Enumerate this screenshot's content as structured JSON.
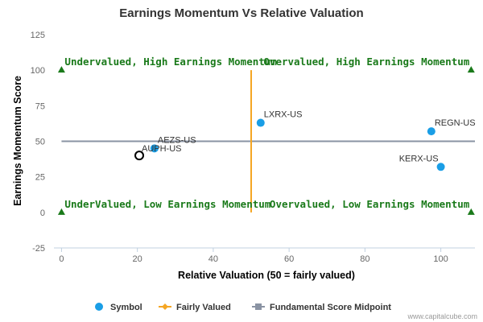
{
  "chart_data": {
    "type": "scatter",
    "title": "Earnings Momentum Vs Relative Valuation",
    "xlabel": "Relative Valuation (50 = fairly valued)",
    "ylabel": "Earnings Momentum Score",
    "xlim": [
      -2,
      109
    ],
    "ylim": [
      -25,
      125
    ],
    "xticks": [
      0,
      20,
      40,
      60,
      80,
      100
    ],
    "yticks": [
      -25,
      0,
      25,
      50,
      75,
      100,
      125
    ],
    "series": [
      {
        "name": "Symbol",
        "color": "#1a9ee6",
        "points": [
          {
            "label": "AEZS-US",
            "x": 24.5,
            "y": 45
          },
          {
            "label": "LXRX-US",
            "x": 52.5,
            "y": 63
          },
          {
            "label": "REGN-US",
            "x": 97.5,
            "y": 57
          },
          {
            "label": "KERX-US",
            "x": 100,
            "y": 32
          }
        ]
      },
      {
        "name": "Fairly Valued",
        "color": "#f5a623",
        "line": {
          "x": 50,
          "y_from": 0,
          "y_to": 100
        }
      },
      {
        "name": "Fundamental Score Midpoint",
        "color": "#8a93a3",
        "line": {
          "y": 50,
          "x_from": 0,
          "x_to": 109
        }
      }
    ],
    "highlight": {
      "label": "AUPH-US",
      "x": 20.5,
      "y": 40
    },
    "corner_markers": [
      {
        "x": 0,
        "y": 100
      },
      {
        "x": 108,
        "y": 100
      },
      {
        "x": 0,
        "y": 0
      },
      {
        "x": 108,
        "y": 0
      }
    ],
    "marker_color": "#1a7a1a",
    "quadrant_labels": [
      "Undervalued, High Earnings Momentum",
      "Overvalued, High Earnings Momentum",
      "UnderValued, Low Earnings Momentum",
      "Overvalued, Low Earnings Momentum"
    ],
    "legend": {
      "position": "bottom",
      "items": [
        "Symbol",
        "Fairly Valued",
        "Fundamental Score Midpoint"
      ]
    },
    "grid": false
  },
  "credit": "www.capitalcube.com"
}
